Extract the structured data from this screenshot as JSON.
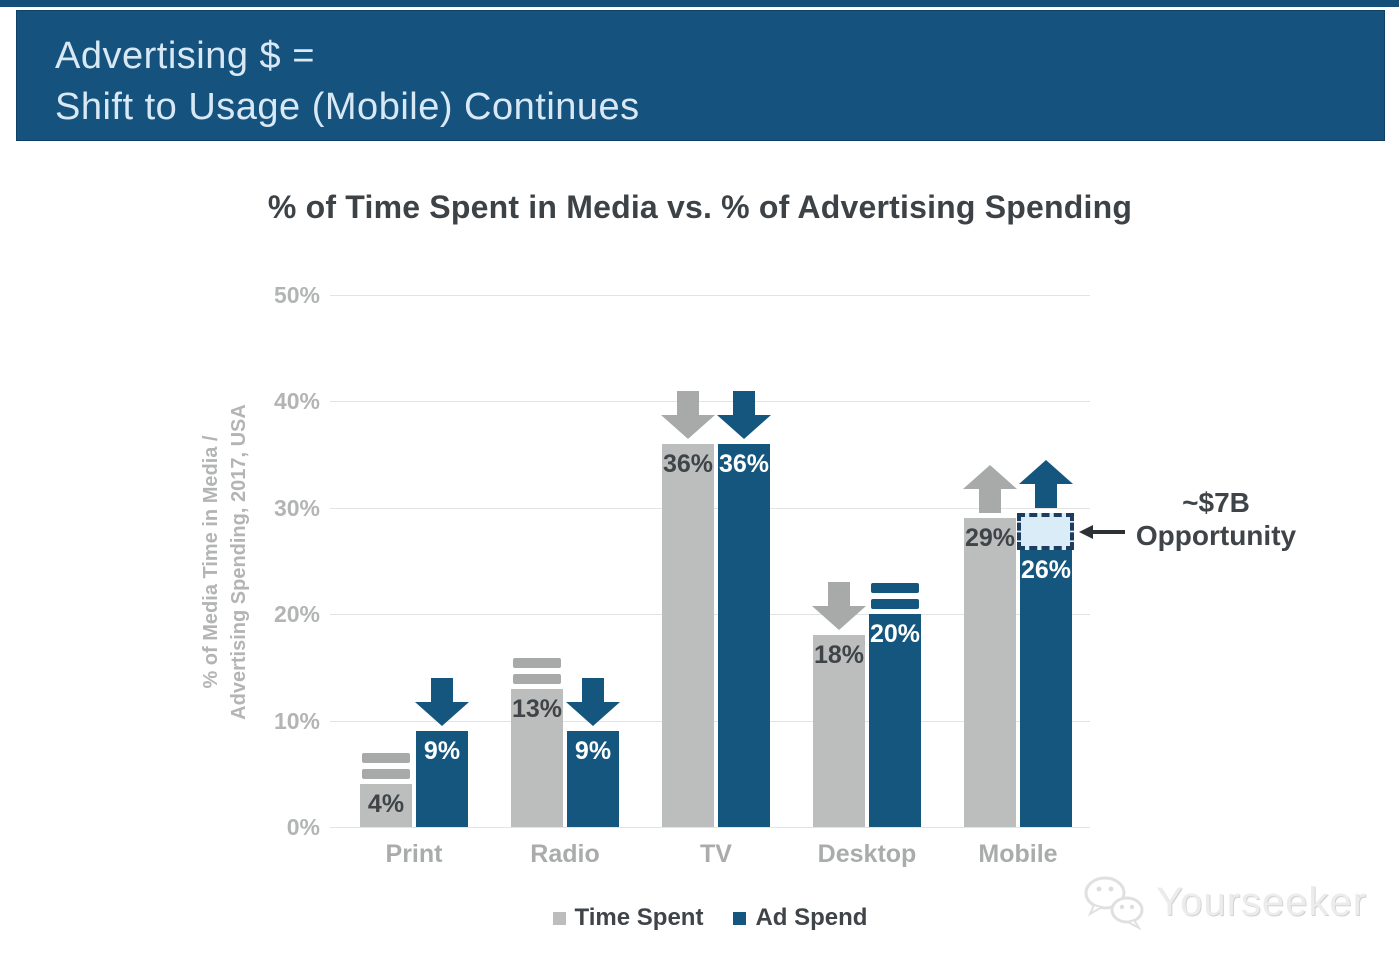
{
  "banner": {
    "line1": "Advertising $ =",
    "line2": "Shift to Usage (Mobile) Continues"
  },
  "chart_data": {
    "type": "bar",
    "title": "% of Time Spent in Media vs. % of Advertising Spending",
    "ylabel_line1": "% of Media Time in Media /",
    "ylabel_line2": "Advertising Spending, 2017, USA",
    "categories": [
      "Print",
      "Radio",
      "TV",
      "Desktop",
      "Mobile"
    ],
    "series": [
      {
        "name": "Time Spent",
        "values": [
          4,
          13,
          36,
          18,
          29
        ],
        "labels": [
          "4%",
          "13%",
          "36%",
          "18%",
          "29%"
        ],
        "trend_markers": [
          "equal",
          "equal",
          "down",
          "down",
          "up"
        ]
      },
      {
        "name": "Ad Spend",
        "values": [
          9,
          9,
          36,
          20,
          26
        ],
        "labels": [
          "9%",
          "9%",
          "36%",
          "20%",
          "26%"
        ],
        "trend_markers": [
          "down",
          "down",
          "down",
          "equal",
          "up"
        ]
      }
    ],
    "yticks": [
      0,
      10,
      20,
      30,
      40,
      50
    ],
    "ytick_labels": [
      "0%",
      "10%",
      "20%",
      "30%",
      "40%",
      "50%"
    ],
    "ylim": [
      0,
      50
    ],
    "grid": true,
    "legend_position": "bottom",
    "annotation": {
      "category": "Mobile",
      "series": "Ad Spend",
      "from": 26,
      "to": 29.5,
      "text_line1": "~$7B",
      "text_line2": "Opportunity"
    }
  },
  "legend": {
    "items": [
      {
        "label": "Time Spent",
        "color": "#bcbebd"
      },
      {
        "label": "Ad Spend",
        "color": "#14567e"
      }
    ]
  },
  "watermark": {
    "text": "Yourseeker"
  },
  "colors": {
    "top_strip": "#134f78",
    "banner_bg": "#15537e",
    "banner_text": "#d8e9f5",
    "bar_gray": "#bcbebd",
    "bar_blue": "#14567e",
    "marker_gray": "#a7aaa9",
    "marker_blue": "#14567e",
    "grid": "#e3e3e3",
    "axis_text": "#b2b5b4",
    "category_text": "#a9acab",
    "dark_text": "#3f4448",
    "label_on_gray": "#3f4448",
    "label_on_blue": "#ffffff",
    "opportunity_fill": "#daecf8",
    "opportunity_border": "#1c3d60",
    "annotation_arrow": "#2c3136"
  }
}
